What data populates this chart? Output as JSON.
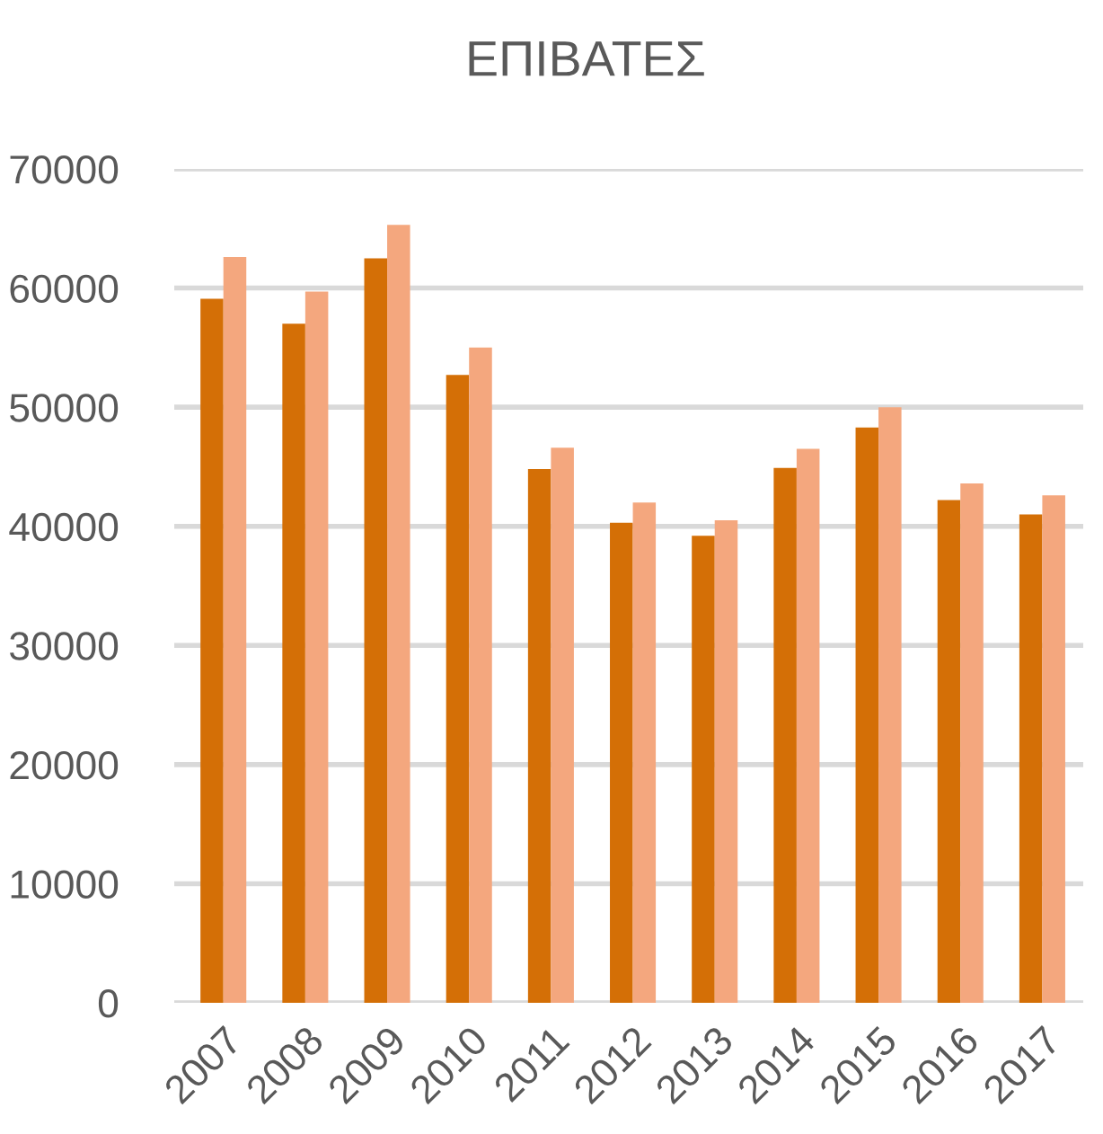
{
  "chart_data": {
    "type": "bar",
    "title": "ΕΠΙΒΑΤΕΣ",
    "categories": [
      "2007",
      "2008",
      "2009",
      "2010",
      "2011",
      "2012",
      "2013",
      "2014",
      "2015",
      "2016",
      "2017"
    ],
    "series": [
      {
        "color": "#d46f06",
        "values": [
          59100,
          57000,
          62500,
          52700,
          44800,
          40300,
          39200,
          44900,
          48300,
          42200,
          41000
        ]
      },
      {
        "color": "#f4a77e",
        "values": [
          62600,
          59700,
          65300,
          55000,
          46600,
          42000,
          40500,
          46500,
          50000,
          43600,
          42600
        ]
      }
    ],
    "ylim": [
      0,
      70000
    ],
    "yticks": [
      0,
      10000,
      20000,
      30000,
      40000,
      50000,
      60000,
      70000
    ],
    "grid": "y"
  }
}
